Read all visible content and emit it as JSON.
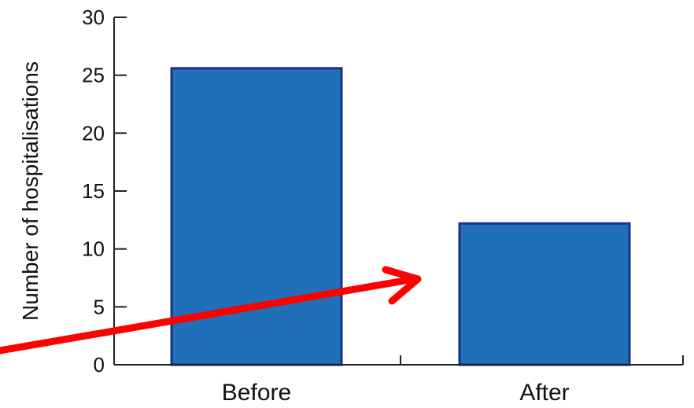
{
  "chart_data": {
    "type": "bar",
    "categories": [
      "Before",
      "After"
    ],
    "values": [
      25.6,
      12.2
    ],
    "title": "",
    "xlabel": "",
    "ylabel": "Number of hospitalisations",
    "ylim": [
      0,
      30
    ],
    "yticks": [
      "0",
      "5",
      "10",
      "15",
      "20",
      "25",
      "30"
    ],
    "grid": false,
    "legend": "none",
    "colors": {
      "bar_fill": "#1f6fb9",
      "bar_stroke": "#1d2f86",
      "axis": "#222222",
      "arrow": "#ff0000"
    }
  },
  "annotations": {
    "arrow": {
      "color": "#ff0000",
      "direction": "toward-after"
    }
  }
}
